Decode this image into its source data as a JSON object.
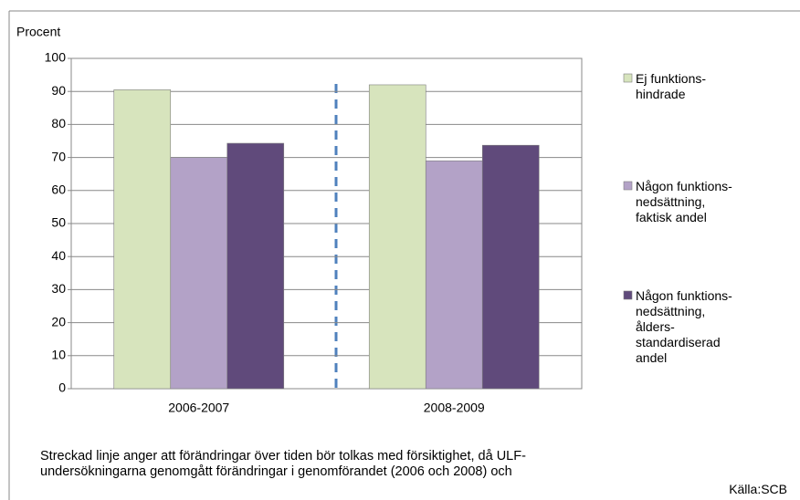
{
  "chart_data": {
    "type": "bar",
    "y_label": "Procent",
    "categories": [
      "2006-2007",
      "2008-2009"
    ],
    "series": [
      {
        "name": "Ej funktions-\nhindrade",
        "color": "#d7e4bd",
        "values": [
          90.5,
          92
        ]
      },
      {
        "name": "Någon funktions-\nnedsättning,\nfaktisk andel",
        "color": "#b3a2c7",
        "values": [
          70,
          69
        ]
      },
      {
        "name": "Någon funktions-\nnedsättning,\nålders-\nstandardiserad\nandel",
        "color": "#604a7b",
        "values": [
          74.3,
          73.7
        ]
      }
    ],
    "ylim": [
      0,
      100
    ],
    "yticks": [
      0,
      10,
      20,
      30,
      40,
      50,
      60,
      70,
      80,
      90,
      100
    ],
    "grid": true,
    "note": "Streckad linje anger att förändringar över tiden bör tolkas med försiktighet, då ULF-\nundersökningarna genomgått förändringar i genomförandet (2006 och 2008) och",
    "source": "Källa:SCB"
  }
}
